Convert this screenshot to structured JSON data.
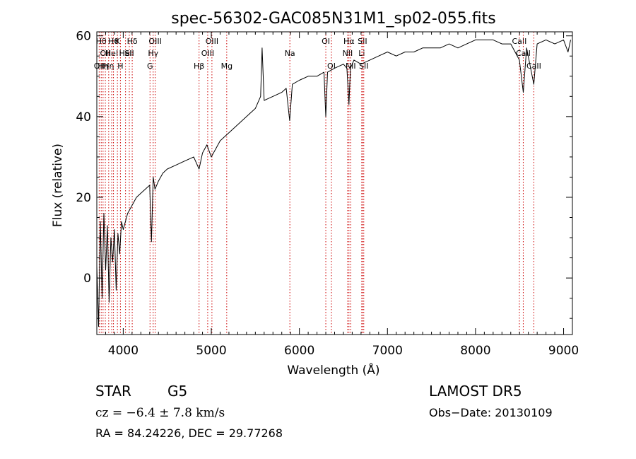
{
  "chart_data": {
    "type": "line",
    "title": "spec-56302-GAC085N31M1_sp02-055.fits",
    "xlabel": "Wavelength (Å)",
    "ylabel": "Flux (relative)",
    "xlim": [
      3700,
      9100
    ],
    "ylim": [
      -14,
      61
    ],
    "x_ticks": [
      4000,
      5000,
      6000,
      7000,
      8000,
      9000
    ],
    "x_tick_labels": [
      "4000",
      "5000",
      "6000",
      "7000",
      "8000",
      "9000"
    ],
    "y_ticks": [
      0,
      20,
      40,
      60
    ],
    "y_tick_labels": [
      "0",
      "20",
      "40",
      "60"
    ],
    "grid": false,
    "series": [
      {
        "color": "#000000",
        "x": [
          3700,
          3720,
          3740,
          3760,
          3780,
          3800,
          3820,
          3840,
          3860,
          3880,
          3900,
          3920,
          3940,
          3960,
          3980,
          4000,
          4050,
          4100,
          4150,
          4200,
          4250,
          4300,
          4320,
          4340,
          4360,
          4400,
          4450,
          4500,
          4600,
          4700,
          4800,
          4861,
          4900,
          4950,
          5000,
          5050,
          5100,
          5150,
          5200,
          5300,
          5400,
          5500,
          5560,
          5577,
          5600,
          5700,
          5800,
          5850,
          5890,
          5920,
          6000,
          6100,
          6200,
          6280,
          6300,
          6320,
          6400,
          6500,
          6540,
          6563,
          6580,
          6620,
          6700,
          6800,
          6900,
          7000,
          7100,
          7200,
          7300,
          7400,
          7500,
          7600,
          7700,
          7800,
          7900,
          8000,
          8100,
          8200,
          8300,
          8400,
          8498,
          8542,
          8580,
          8662,
          8700,
          8800,
          8900,
          9000,
          9050,
          9080
        ],
        "values": [
          3,
          -12,
          14,
          -5,
          16,
          2,
          13,
          -6,
          10,
          4,
          12,
          -3,
          11,
          6,
          14,
          12,
          16,
          18,
          20,
          21,
          22,
          23,
          9,
          25,
          22,
          24,
          26,
          27,
          28,
          29,
          30,
          27,
          31,
          33,
          30,
          32,
          34,
          35,
          36,
          38,
          40,
          42,
          45,
          57,
          44,
          45,
          46,
          47,
          39,
          48,
          49,
          50,
          50,
          51,
          40,
          51,
          52,
          53,
          52,
          43,
          52,
          54,
          53,
          54,
          55,
          56,
          55,
          56,
          56,
          57,
          57,
          57,
          58,
          57,
          58,
          59,
          59,
          59,
          58,
          58,
          54,
          46,
          57,
          48,
          58,
          59,
          58,
          59,
          56,
          59
        ]
      }
    ],
    "spectral_lines": [
      {
        "x": 3727,
        "label": "OII",
        "row": 2
      },
      {
        "x": 3750,
        "label": "Hθ",
        "row": 0
      },
      {
        "x": 3771,
        "label": "Hη",
        "row": 2
      },
      {
        "x": 3797,
        "label": "OII",
        "row": 1
      },
      {
        "x": 3835,
        "label": "Hη",
        "row": 2
      },
      {
        "x": 3869,
        "label": "HeI",
        "row": 1
      },
      {
        "x": 3889,
        "label": "Hθ",
        "row": 0
      },
      {
        "x": 3934,
        "label": "K",
        "row": 0
      },
      {
        "x": 3968,
        "label": "H",
        "row": 2
      },
      {
        "x": 4026,
        "label": "HeI",
        "row": 1
      },
      {
        "x": 4069,
        "label": "SII",
        "row": 1
      },
      {
        "x": 4102,
        "label": "Hδ",
        "row": 0
      },
      {
        "x": 4304,
        "label": "G",
        "row": 2
      },
      {
        "x": 4340,
        "label": "Hγ",
        "row": 1
      },
      {
        "x": 4363,
        "label": "OIII",
        "row": 0
      },
      {
        "x": 4861,
        "label": "Hβ",
        "row": 2
      },
      {
        "x": 4959,
        "label": "OIII",
        "row": 1
      },
      {
        "x": 5007,
        "label": "OIII",
        "row": 0
      },
      {
        "x": 5175,
        "label": "Mg",
        "row": 2
      },
      {
        "x": 5892,
        "label": "Na",
        "row": 1
      },
      {
        "x": 6300,
        "label": "OI",
        "row": 0
      },
      {
        "x": 6364,
        "label": "OI",
        "row": 2
      },
      {
        "x": 6548,
        "label": "NII",
        "row": 1
      },
      {
        "x": 6563,
        "label": "Hα",
        "row": 0
      },
      {
        "x": 6583,
        "label": "NII",
        "row": 2
      },
      {
        "x": 6708,
        "label": "Li",
        "row": 1
      },
      {
        "x": 6716,
        "label": "SII",
        "row": 0
      },
      {
        "x": 6731,
        "label": "SII",
        "row": 2
      },
      {
        "x": 8498,
        "label": "CaII",
        "row": 0
      },
      {
        "x": 8542,
        "label": "CaII",
        "row": 1
      },
      {
        "x": 8662,
        "label": "CaII",
        "row": 2
      }
    ]
  },
  "info": {
    "class_label": "STAR",
    "subclass": "G5",
    "cz_text": "cz = −6.4 ± 7.8 km/s",
    "coords_text": "RA =  84.24226, DEC =  29.77268",
    "survey": "LAMOST  DR5",
    "obs_date": "Obs−Date: 20130109"
  }
}
